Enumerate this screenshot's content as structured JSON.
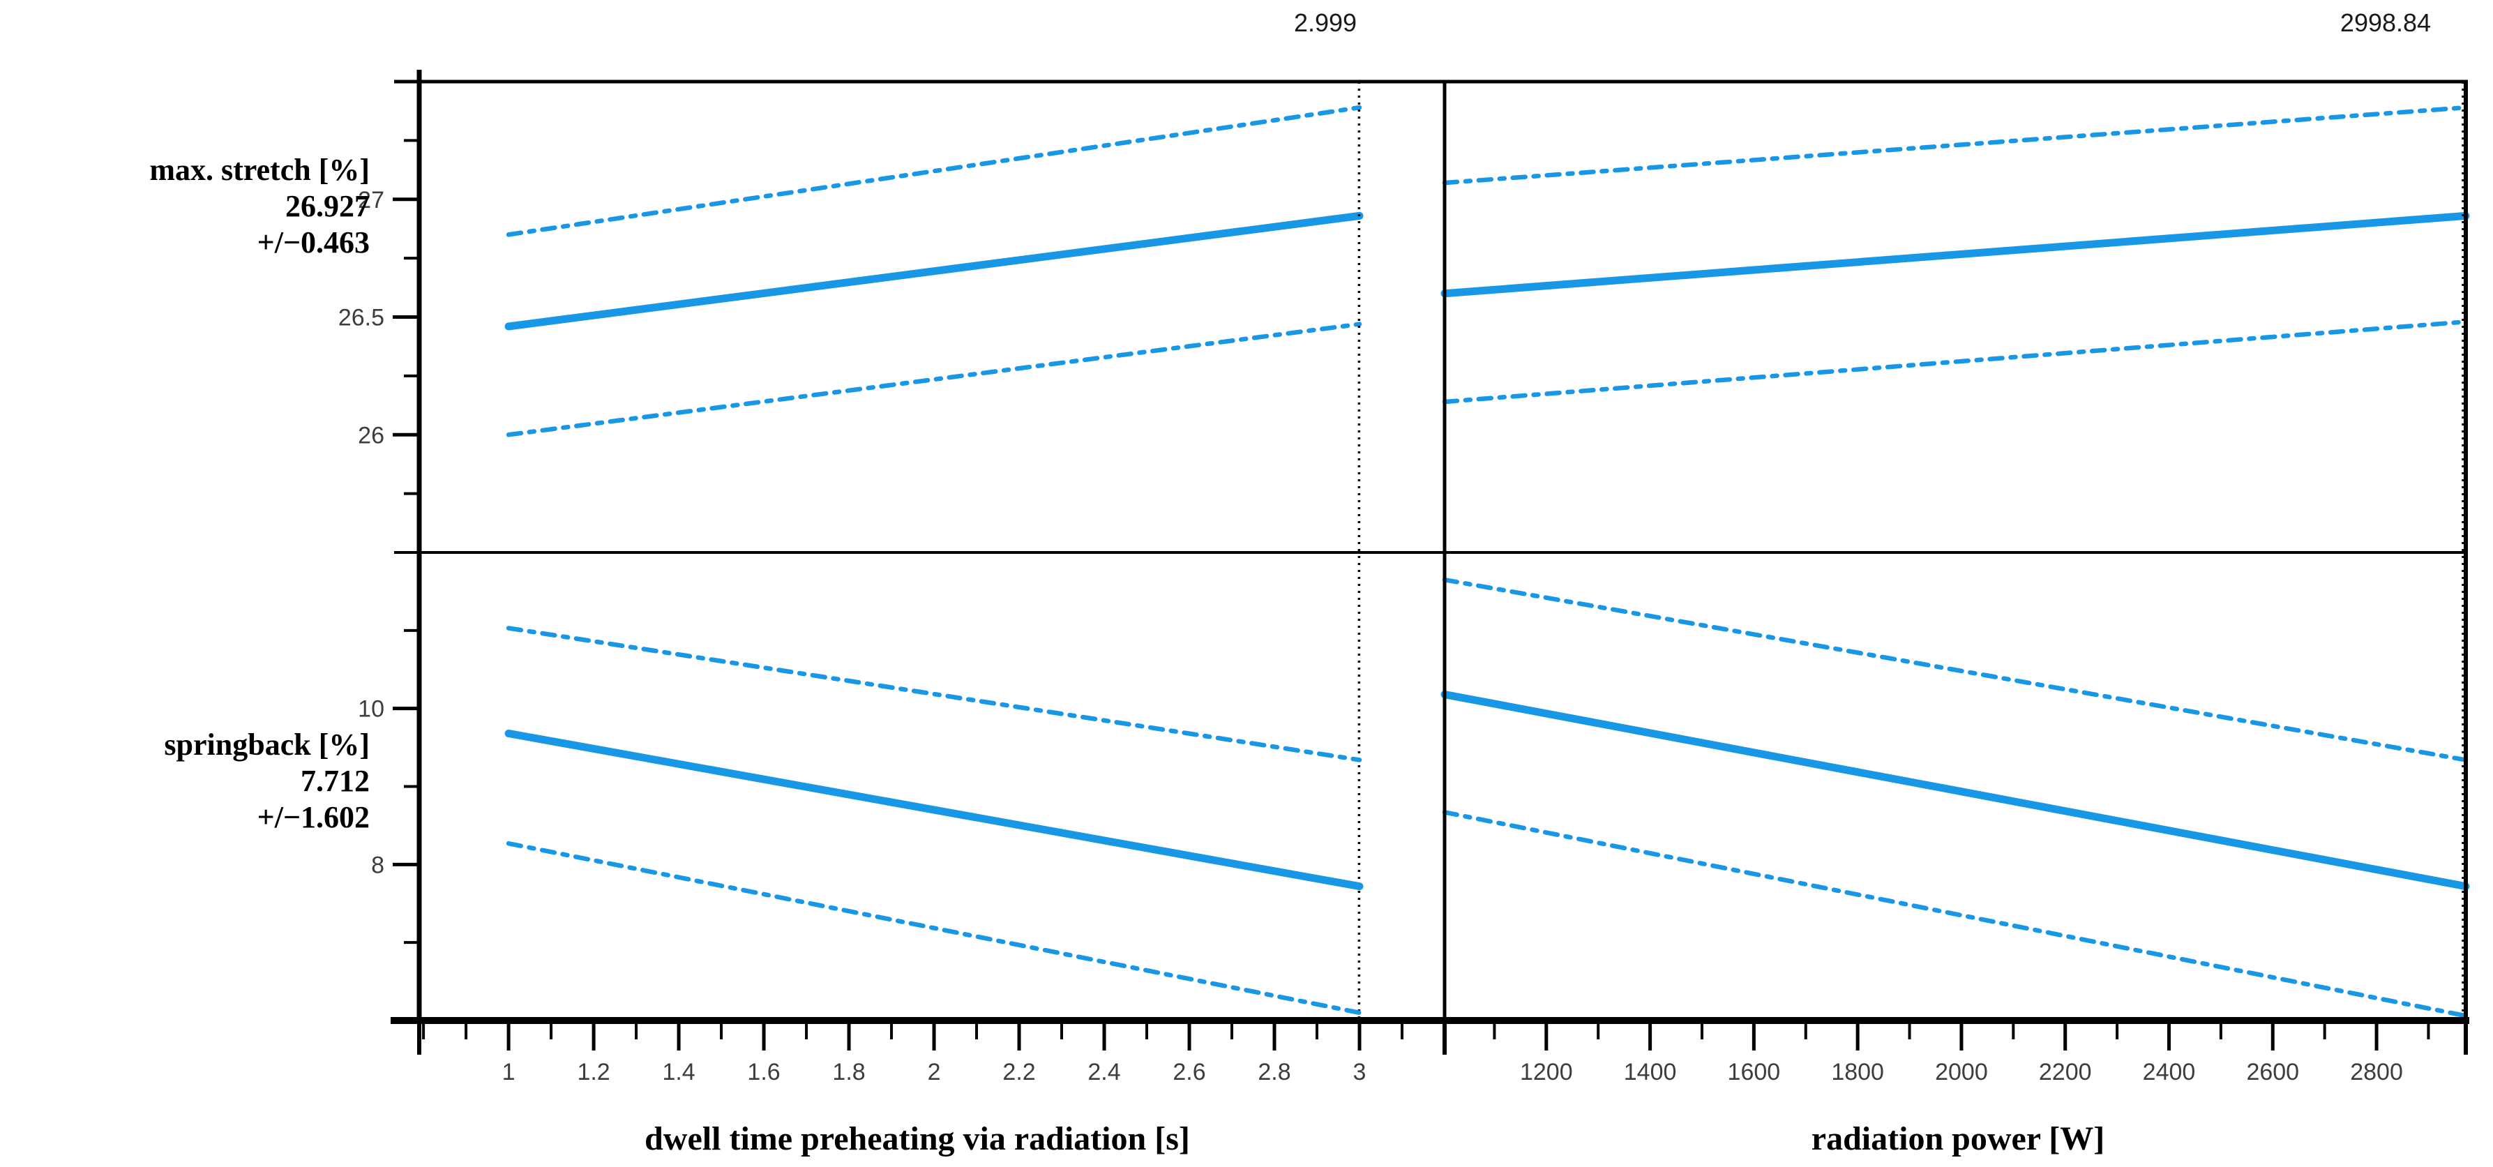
{
  "header": {
    "factor_current_values": [
      {
        "text": "2.999"
      },
      {
        "text": "2998.84"
      }
    ]
  },
  "responses": [
    {
      "name": "max. stretch [%]",
      "value": "26.927",
      "tolerance": "+/−0.463"
    },
    {
      "name": "springback [%]",
      "value": "7.712",
      "tolerance": "+/−1.602"
    }
  ],
  "factors": [
    {
      "axis_title": "dwell time preheating via radiation  [s]"
    },
    {
      "axis_title": "radiation power [W]"
    }
  ],
  "colors": {
    "curve": "#1897e6",
    "axis": "#000000",
    "tick_text": "#3d3d3d"
  },
  "chart_data": [
    {
      "id": "max-stretch-vs-dwell-time",
      "type": "line",
      "row": 0,
      "col": 0,
      "ylabel": "max. stretch [%]",
      "xlabel": "dwell time preheating via radiation [s]",
      "xlim": [
        0.79,
        3.2
      ],
      "ylim": [
        25.5,
        27.5
      ],
      "x_ticks_minor": [
        0.8,
        0.9,
        1.1,
        1.3,
        1.5,
        1.7,
        1.9,
        2.1,
        2.3,
        2.5,
        2.7,
        2.9,
        3.1
      ],
      "x_ticks_major": [
        1,
        1.2,
        1.4,
        1.6,
        1.8,
        2,
        2.2,
        2.4,
        2.6,
        2.8,
        3
      ],
      "x_tick_labels": [
        "1",
        "1.2",
        "1.4",
        "1.6",
        "1.8",
        "2",
        "2.2",
        "2.4",
        "2.6",
        "2.8",
        "3"
      ],
      "y_ticks_minor": [
        25.75,
        26.25,
        26.75,
        27.25
      ],
      "y_ticks_major": [
        26,
        26.5,
        27
      ],
      "y_tick_labels": [
        "26",
        "26.5",
        "27"
      ],
      "current_x": 2.999,
      "grid": false,
      "series": [
        {
          "name": "prediction",
          "style": "solid",
          "x": [
            1,
            3
          ],
          "y": [
            26.46,
            26.93
          ]
        },
        {
          "name": "upper-ci",
          "style": "dashed",
          "x": [
            1,
            3
          ],
          "y": [
            26.85,
            27.39
          ]
        },
        {
          "name": "lower-ci",
          "style": "dashed",
          "x": [
            1,
            3
          ],
          "y": [
            26.0,
            26.47
          ]
        }
      ]
    },
    {
      "id": "max-stretch-vs-radiation-power",
      "type": "line",
      "row": 0,
      "col": 1,
      "ylabel": "max. stretch [%]",
      "xlabel": "radiation power [W]",
      "xlim": [
        1004,
        2972
      ],
      "ylim": [
        25.5,
        27.5
      ],
      "x_ticks_minor": [
        1100,
        1300,
        1500,
        1700,
        1900,
        2100,
        2300,
        2500,
        2700,
        2900
      ],
      "x_ticks_major": [
        1200,
        1400,
        1600,
        1800,
        2000,
        2200,
        2400,
        2600,
        2800
      ],
      "x_tick_labels": [
        "1200",
        "1400",
        "1600",
        "1800",
        "2000",
        "2200",
        "2400",
        "2600",
        "2800"
      ],
      "y_ticks_minor": [],
      "y_ticks_major": [],
      "y_tick_labels": [],
      "current_x": 2998.84,
      "grid": false,
      "series": [
        {
          "name": "prediction",
          "style": "solid",
          "x": [
            1004,
            2972
          ],
          "y": [
            26.6,
            26.93
          ]
        },
        {
          "name": "upper-ci",
          "style": "dashed",
          "x": [
            1004,
            2972
          ],
          "y": [
            27.07,
            27.39
          ]
        },
        {
          "name": "lower-ci",
          "style": "dashed",
          "x": [
            1004,
            2972
          ],
          "y": [
            26.14,
            26.48
          ]
        }
      ]
    },
    {
      "id": "springback-vs-dwell-time",
      "type": "line",
      "row": 1,
      "col": 0,
      "ylabel": "springback [%]",
      "xlabel": "dwell time preheating via radiation [s]",
      "xlim": [
        0.79,
        3.2
      ],
      "ylim": [
        6,
        12
      ],
      "x_ticks_minor": [
        0.8,
        0.9,
        1.1,
        1.3,
        1.5,
        1.7,
        1.9,
        2.1,
        2.3,
        2.5,
        2.7,
        2.9,
        3.1
      ],
      "x_ticks_major": [
        1,
        1.2,
        1.4,
        1.6,
        1.8,
        2,
        2.2,
        2.4,
        2.6,
        2.8,
        3
      ],
      "x_tick_labels": [
        "1",
        "1.2",
        "1.4",
        "1.6",
        "1.8",
        "2",
        "2.2",
        "2.4",
        "2.6",
        "2.8",
        "3"
      ],
      "y_ticks_minor": [
        7,
        9,
        11
      ],
      "y_ticks_major": [
        8,
        10
      ],
      "y_tick_labels": [
        "8",
        "10"
      ],
      "current_x": 2.999,
      "grid": false,
      "series": [
        {
          "name": "prediction",
          "style": "solid",
          "x": [
            1,
            3
          ],
          "y": [
            9.68,
            7.72
          ]
        },
        {
          "name": "upper-ci",
          "style": "dashed",
          "x": [
            1,
            3
          ],
          "y": [
            11.03,
            9.34
          ]
        },
        {
          "name": "lower-ci",
          "style": "dashed",
          "x": [
            1,
            3
          ],
          "y": [
            8.27,
            6.1
          ]
        }
      ]
    },
    {
      "id": "springback-vs-radiation-power",
      "type": "line",
      "row": 1,
      "col": 1,
      "ylabel": "springback [%]",
      "xlabel": "radiation power [W]",
      "xlim": [
        1004,
        2972
      ],
      "ylim": [
        6,
        12
      ],
      "x_ticks_minor": [
        1100,
        1300,
        1500,
        1700,
        1900,
        2100,
        2300,
        2500,
        2700,
        2900
      ],
      "x_ticks_major": [
        1200,
        1400,
        1600,
        1800,
        2000,
        2200,
        2400,
        2600,
        2800
      ],
      "x_tick_labels": [
        "1200",
        "1400",
        "1600",
        "1800",
        "2000",
        "2200",
        "2400",
        "2600",
        "2800"
      ],
      "y_ticks_minor": [],
      "y_ticks_major": [],
      "y_tick_labels": [],
      "current_x": 2998.84,
      "grid": false,
      "series": [
        {
          "name": "prediction",
          "style": "solid",
          "x": [
            1004,
            2972
          ],
          "y": [
            10.18,
            7.72
          ]
        },
        {
          "name": "upper-ci",
          "style": "dashed",
          "x": [
            1004,
            2972
          ],
          "y": [
            11.65,
            9.34
          ]
        },
        {
          "name": "lower-ci",
          "style": "dashed",
          "x": [
            1004,
            2972
          ],
          "y": [
            8.67,
            6.06
          ]
        }
      ]
    }
  ]
}
